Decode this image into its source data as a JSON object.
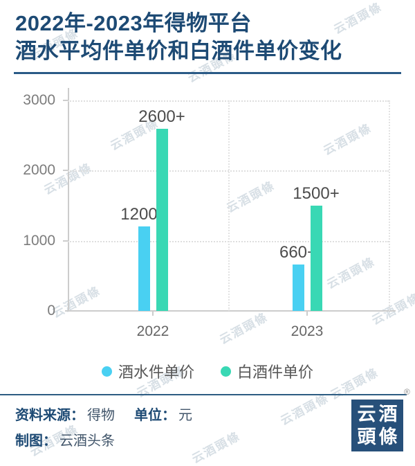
{
  "title": {
    "line1": "2022年-2023年得物平台",
    "line2": "酒水平均件单价和白酒件单价变化"
  },
  "watermark_text": "云酒頭條",
  "chart_data": {
    "type": "bar",
    "title": "2022年-2023年得物平台酒水平均件单价和白酒件单价变化",
    "unit": "元",
    "categories": [
      "2022",
      "2023"
    ],
    "series": [
      {
        "name": "酒水件单价",
        "color": "#49d0f2",
        "values": [
          1200,
          660
        ],
        "value_labels": [
          "1200+",
          "660+"
        ]
      },
      {
        "name": "白酒件单价",
        "color": "#39d8b4",
        "values": [
          2600,
          1500
        ],
        "value_labels": [
          "2600+",
          "1500+"
        ]
      }
    ],
    "ylim": [
      0,
      3000
    ],
    "yticks": [
      0,
      1000,
      2000,
      3000
    ],
    "xlabel": "",
    "ylabel": "",
    "grid": "dotted horizontal lines + dotted category boundary verticals",
    "legend_position": "bottom"
  },
  "footer": {
    "source_label": "资料来源：",
    "source_value": "得物",
    "unit_label": "单位：",
    "unit_value": "元",
    "credit_label": "制图：",
    "credit_value": "云酒头条",
    "logo": {
      "line1": "云酒",
      "line2": "頭條",
      "registered": "®"
    }
  },
  "colors": {
    "title_navy": "#1d4a74",
    "bar_blue": "#49d0f2",
    "bar_teal": "#39d8b4",
    "logo_bg": "#27507a",
    "axis_gray": "#cccccc",
    "grid_gray": "#dedede"
  }
}
